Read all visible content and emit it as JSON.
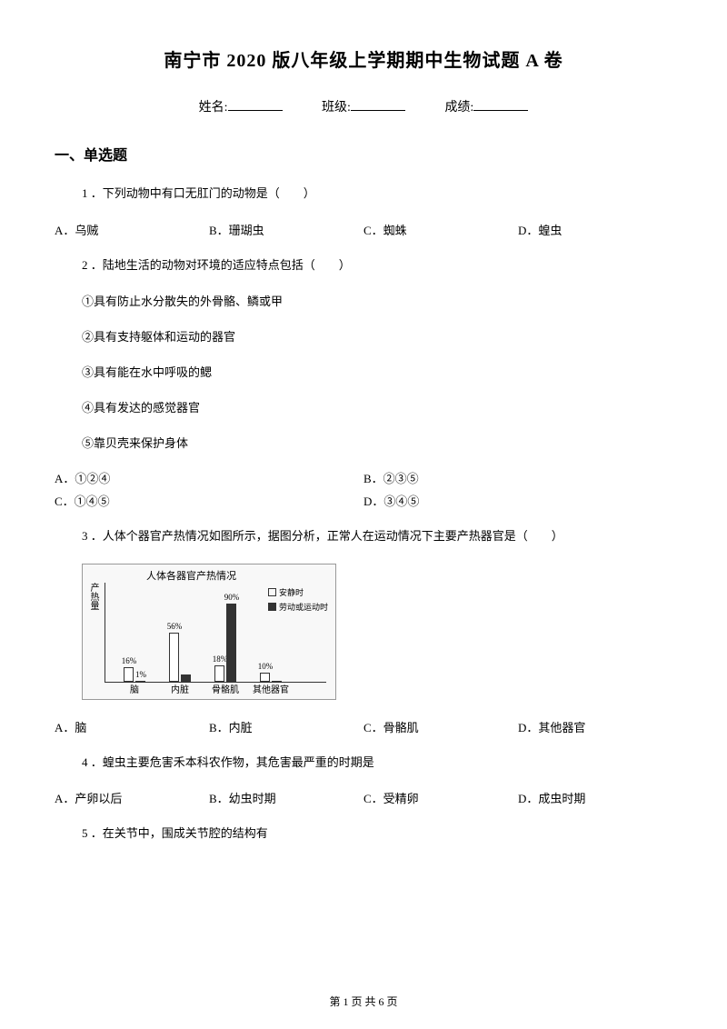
{
  "title": "南宁市 2020 版八年级上学期期中生物试题 A 卷",
  "info": {
    "name_label": "姓名:",
    "class_label": "班级:",
    "score_label": "成绩:"
  },
  "section1": "一、单选题",
  "q1": {
    "stem": "1 ．下列动物中有口无肛门的动物是（　　）",
    "A": "A．乌贼",
    "B": "B．珊瑚虫",
    "C": "C．蜘蛛",
    "D": "D．蝗虫"
  },
  "q2": {
    "stem": "2 ．陆地生活的动物对环境的适应特点包括（　　）",
    "i1": "①具有防止水分散失的外骨骼、鳞或甲",
    "i2": "②具有支持躯体和运动的器官",
    "i3": "③具有能在水中呼吸的鳃",
    "i4": "④具有发达的感觉器官",
    "i5": "⑤靠贝壳来保护身体",
    "A": "A．①②④",
    "B": "B．②③⑤",
    "C": "C．①④⑤",
    "D": "D．③④⑤"
  },
  "q3": {
    "stem": "3 ．人体个器官产热情况如图所示，据图分析，正常人在运动情况下主要产热器官是（　　）",
    "A": "A．脑",
    "B": "B．内脏",
    "C": "C．骨骼肌",
    "D": "D．其他器官"
  },
  "chart": {
    "title": "人体各器官产热情况",
    "y_label": "产热量",
    "legend_rest": "安静时",
    "legend_work": "劳动或运动时",
    "categories": [
      "脑",
      "内脏",
      "骨骼肌",
      "其他器官"
    ],
    "rest_values": [
      16,
      56,
      18,
      10
    ],
    "work_values": [
      1,
      8,
      90,
      1
    ],
    "rest_labels": [
      "16%",
      "56%",
      "18%",
      "10%"
    ],
    "work_labels": [
      "1%",
      "",
      "90%",
      ""
    ],
    "bar_group_x": [
      45,
      95,
      145,
      195
    ],
    "max_height": 95
  },
  "q4": {
    "stem": "4 ．蝗虫主要危害禾本科农作物，其危害最严重的时期是",
    "A": "A．产卵以后",
    "B": "B．幼虫时期",
    "C": "C．受精卵",
    "D": "D．成虫时期"
  },
  "q5": {
    "stem": "5 ．在关节中，围成关节腔的结构有"
  },
  "footer": "第 1 页 共 6 页"
}
